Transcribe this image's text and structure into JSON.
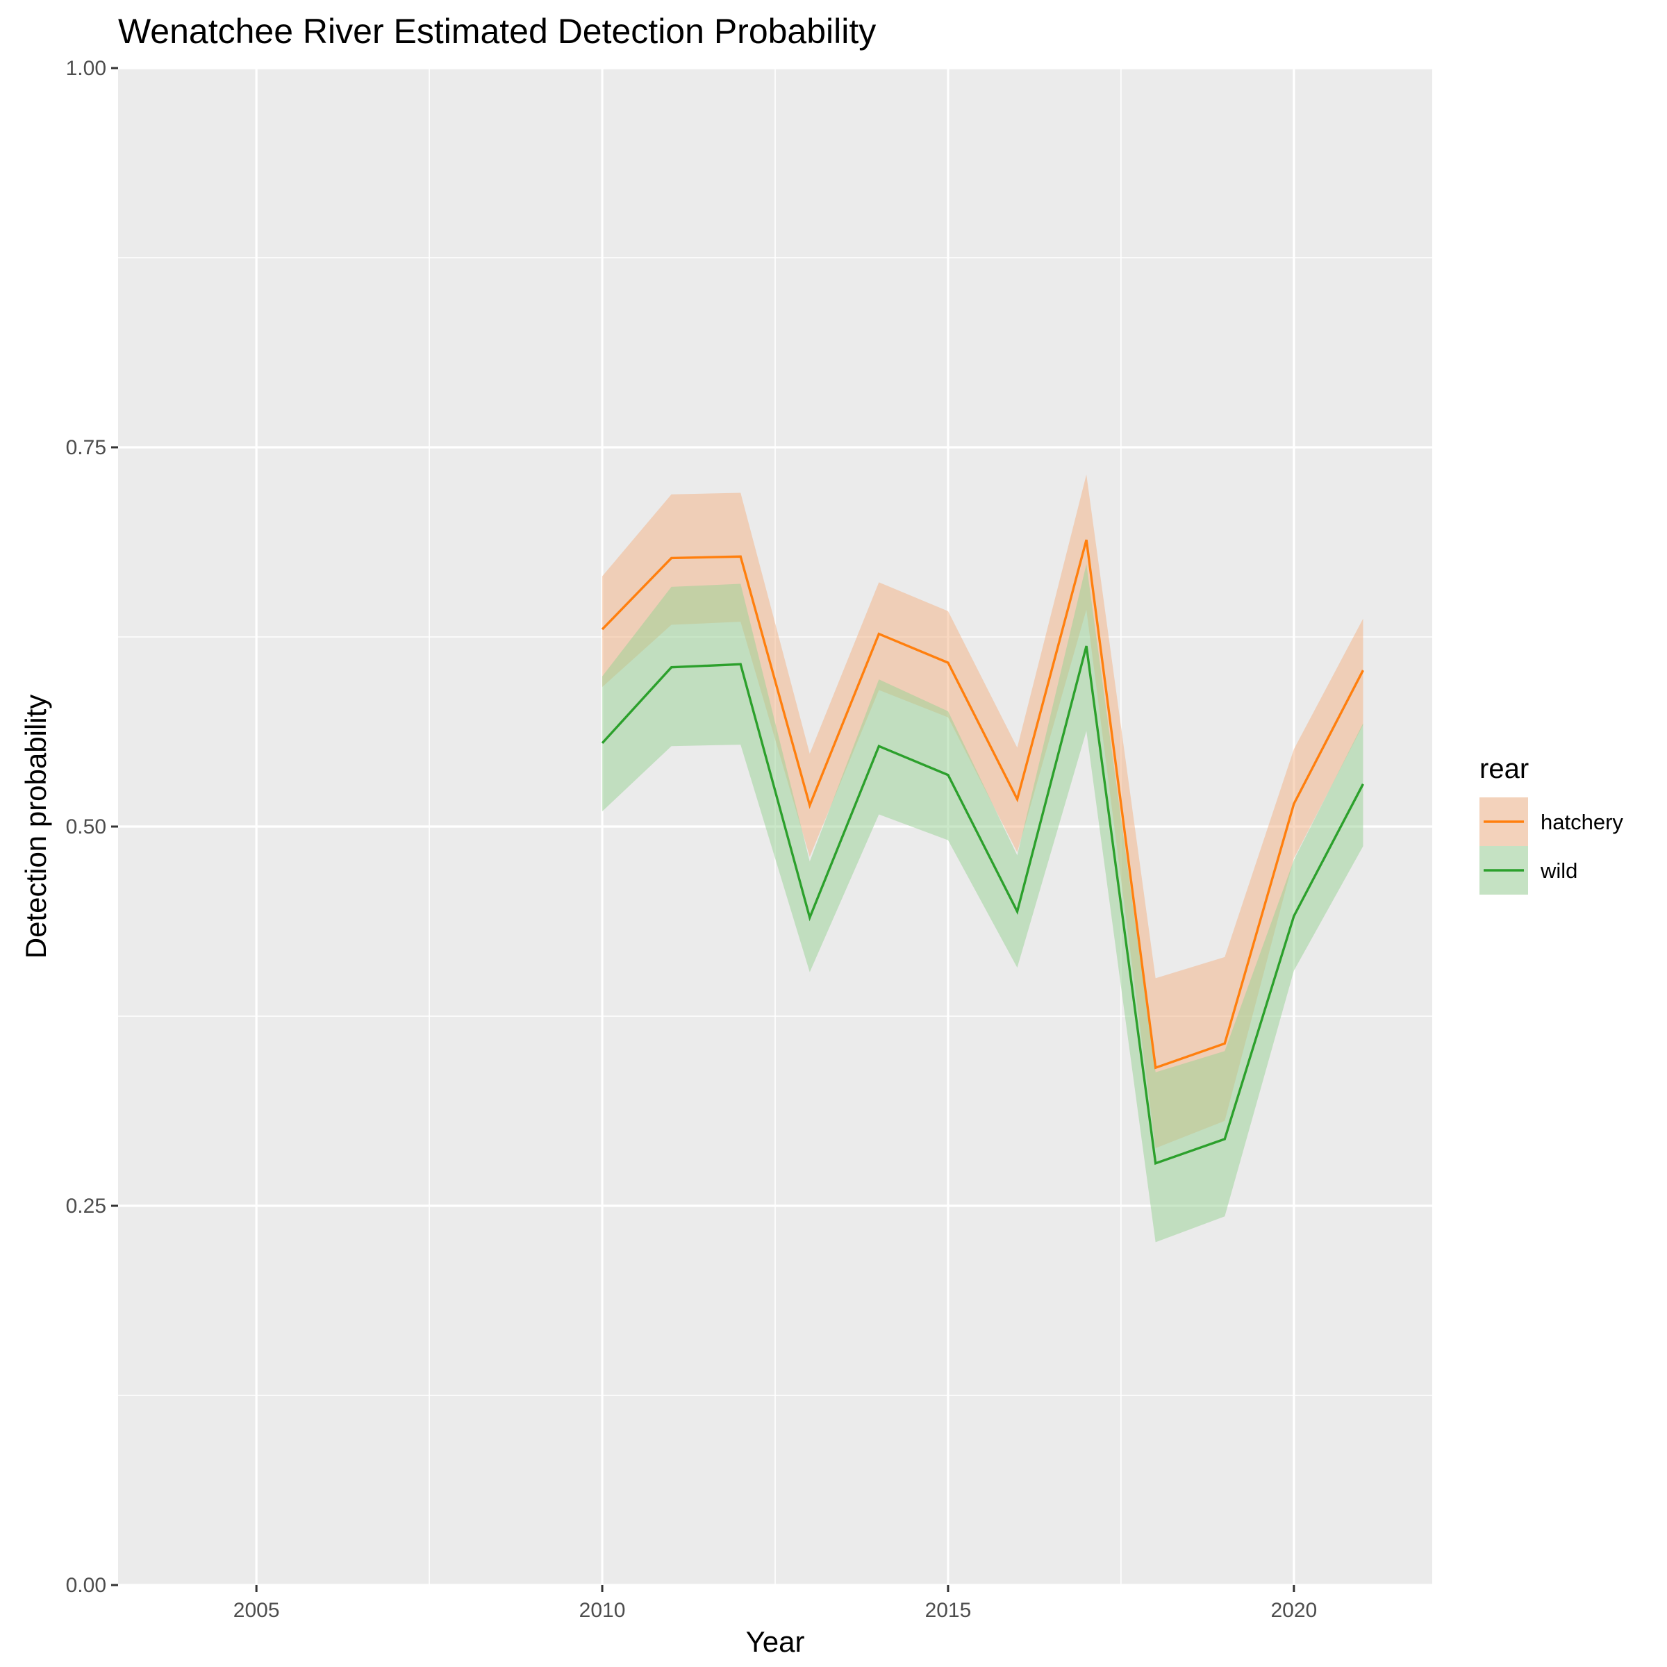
{
  "chart_data": {
    "type": "line",
    "title": "Wenatchee River Estimated Detection Probability",
    "xlabel": "Year",
    "ylabel": "Detection probability",
    "xlim": [
      2003,
      2022
    ],
    "ylim": [
      0,
      1
    ],
    "x_ticks": [
      2005,
      2010,
      2015,
      2020
    ],
    "x_tick_labels": [
      "2005",
      "2010",
      "2015",
      "2020"
    ],
    "y_ticks": [
      0,
      0.25,
      0.5,
      0.75,
      1
    ],
    "y_tick_labels": [
      "0.00",
      "0.25",
      "0.50",
      "0.75",
      "1.00"
    ],
    "panel_background": "#ebebeb",
    "grid": true,
    "legend": {
      "title": "rear",
      "position": "right"
    },
    "series": [
      {
        "name": "hatchery",
        "color": "#ff7f0e",
        "fill": "#f4b183",
        "x": [
          2010,
          2011,
          2012,
          2013,
          2014,
          2015,
          2016,
          2017,
          2018,
          2019,
          2020,
          2021
        ],
        "values": [
          0.63,
          0.677,
          0.678,
          0.514,
          0.627,
          0.608,
          0.518,
          0.689,
          0.341,
          0.357,
          0.515,
          0.603
        ],
        "lower": [
          0.592,
          0.633,
          0.635,
          0.48,
          0.59,
          0.572,
          0.483,
          0.643,
          0.288,
          0.306,
          0.479,
          0.567
        ],
        "upper": [
          0.665,
          0.719,
          0.72,
          0.548,
          0.661,
          0.642,
          0.552,
          0.732,
          0.4,
          0.414,
          0.551,
          0.637
        ]
      },
      {
        "name": "wild",
        "color": "#2ca02c",
        "fill": "#98d193",
        "x": [
          2010,
          2011,
          2012,
          2013,
          2014,
          2015,
          2016,
          2017,
          2018,
          2019,
          2020,
          2021
        ],
        "values": [
          0.555,
          0.605,
          0.607,
          0.44,
          0.553,
          0.534,
          0.444,
          0.619,
          0.278,
          0.294,
          0.441,
          0.528
        ],
        "lower": [
          0.51,
          0.553,
          0.554,
          0.404,
          0.508,
          0.491,
          0.407,
          0.563,
          0.226,
          0.243,
          0.405,
          0.487
        ],
        "upper": [
          0.599,
          0.658,
          0.66,
          0.477,
          0.597,
          0.576,
          0.481,
          0.673,
          0.338,
          0.352,
          0.478,
          0.568
        ]
      }
    ]
  }
}
